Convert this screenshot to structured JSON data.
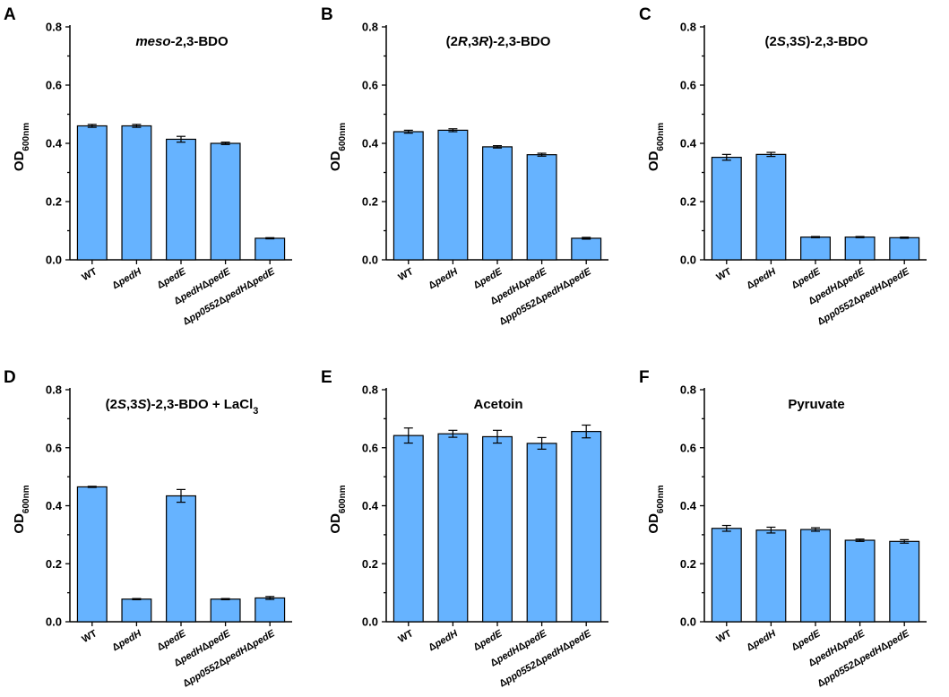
{
  "figure_title": "",
  "x_categories": [
    [
      "WT"
    ],
    [
      "Δ",
      "pedH"
    ],
    [
      "Δ",
      "pedE"
    ],
    [
      "Δ",
      "pedH",
      "Δ",
      "pedE"
    ],
    [
      "Δ",
      "pp0552",
      "Δ",
      "pedH",
      "Δ",
      "pedE"
    ]
  ],
  "chart_data": [
    {
      "panel": "A",
      "type": "bar",
      "title_parts": [
        {
          "t": "meso",
          "i": true
        },
        {
          "t": "-2,3-BDO",
          "i": false
        }
      ],
      "ylabel": "OD",
      "ylabel_sub": "600nm",
      "ylim": [
        0,
        0.8
      ],
      "yticks": [
        "0.0",
        "0.2",
        "0.4",
        "0.6",
        "0.8"
      ],
      "categories": [
        "WT",
        "ΔpedH",
        "ΔpedE",
        "ΔpedHΔpedE",
        "Δpp0552ΔpedHΔpedE"
      ],
      "values": [
        0.46,
        0.46,
        0.414,
        0.4,
        0.074
      ],
      "errors": [
        0.005,
        0.005,
        0.01,
        0.004,
        0.002
      ]
    },
    {
      "panel": "B",
      "type": "bar",
      "title_parts": [
        {
          "t": "(2",
          "i": false
        },
        {
          "t": "R",
          "i": true
        },
        {
          "t": ",3",
          "i": false
        },
        {
          "t": "R",
          "i": true
        },
        {
          "t": ")-2,3-BDO",
          "i": false
        }
      ],
      "ylabel": "OD",
      "ylabel_sub": "600nm",
      "ylim": [
        0,
        0.8
      ],
      "yticks": [
        "0.0",
        "0.2",
        "0.4",
        "0.6",
        "0.8"
      ],
      "categories": [
        "WT",
        "ΔpedH",
        "ΔpedE",
        "ΔpedHΔpedE",
        "Δpp0552ΔpedHΔpedE"
      ],
      "values": [
        0.44,
        0.445,
        0.388,
        0.361,
        0.074
      ],
      "errors": [
        0.005,
        0.005,
        0.004,
        0.005,
        0.003
      ]
    },
    {
      "panel": "C",
      "type": "bar",
      "title_parts": [
        {
          "t": "(2",
          "i": false
        },
        {
          "t": "S",
          "i": true
        },
        {
          "t": ",3",
          "i": false
        },
        {
          "t": "S",
          "i": true
        },
        {
          "t": ")-2,3-BDO",
          "i": false
        }
      ],
      "ylabel": "OD",
      "ylabel_sub": "600nm",
      "ylim": [
        0,
        0.8
      ],
      "yticks": [
        "0.0",
        "0.2",
        "0.4",
        "0.6",
        "0.8"
      ],
      "categories": [
        "WT",
        "ΔpedH",
        "ΔpedE",
        "ΔpedHΔpedE",
        "Δpp0552ΔpedHΔpedE"
      ],
      "values": [
        0.352,
        0.362,
        0.078,
        0.078,
        0.076
      ],
      "errors": [
        0.01,
        0.007,
        0.002,
        0.002,
        0.002
      ]
    },
    {
      "panel": "D",
      "type": "bar",
      "title_parts": [
        {
          "t": "(2",
          "i": false
        },
        {
          "t": "S",
          "i": true
        },
        {
          "t": ",3",
          "i": false
        },
        {
          "t": "S",
          "i": true
        },
        {
          "t": ")-2,3-BDO + LaCl",
          "i": false
        },
        {
          "t": "3",
          "i": false,
          "sub": true
        }
      ],
      "ylabel": "OD",
      "ylabel_sub": "600nm",
      "ylim": [
        0,
        0.8
      ],
      "yticks": [
        "0.0",
        "0.2",
        "0.4",
        "0.6",
        "0.8"
      ],
      "categories": [
        "WT",
        "ΔpedH",
        "ΔpedE",
        "ΔpedHΔpedE",
        "Δpp0552ΔpedHΔpedE"
      ],
      "values": [
        0.465,
        0.078,
        0.434,
        0.078,
        0.082
      ],
      "errors": [
        0.002,
        0.002,
        0.022,
        0.002,
        0.005
      ]
    },
    {
      "panel": "E",
      "type": "bar",
      "title_parts": [
        {
          "t": "Acetoin",
          "i": false
        }
      ],
      "ylabel": "OD",
      "ylabel_sub": "600nm",
      "ylim": [
        0,
        0.8
      ],
      "yticks": [
        "0.0",
        "0.2",
        "0.4",
        "0.6",
        "0.8"
      ],
      "categories": [
        "WT",
        "ΔpedH",
        "ΔpedE",
        "ΔpedHΔpedE",
        "Δpp0552ΔpedHΔpedE"
      ],
      "values": [
        0.642,
        0.648,
        0.638,
        0.615,
        0.656
      ],
      "errors": [
        0.026,
        0.012,
        0.022,
        0.02,
        0.022
      ]
    },
    {
      "panel": "F",
      "type": "bar",
      "title_parts": [
        {
          "t": "Pyruvate",
          "i": false
        }
      ],
      "ylabel": "OD",
      "ylabel_sub": "600nm",
      "ylim": [
        0,
        0.8
      ],
      "yticks": [
        "0.0",
        "0.2",
        "0.4",
        "0.6",
        "0.8"
      ],
      "categories": [
        "WT",
        "ΔpedH",
        "ΔpedE",
        "ΔpedHΔpedE",
        "Δpp0552ΔpedHΔpedE"
      ],
      "values": [
        0.322,
        0.316,
        0.318,
        0.281,
        0.277
      ],
      "errors": [
        0.01,
        0.01,
        0.006,
        0.004,
        0.006
      ]
    }
  ]
}
